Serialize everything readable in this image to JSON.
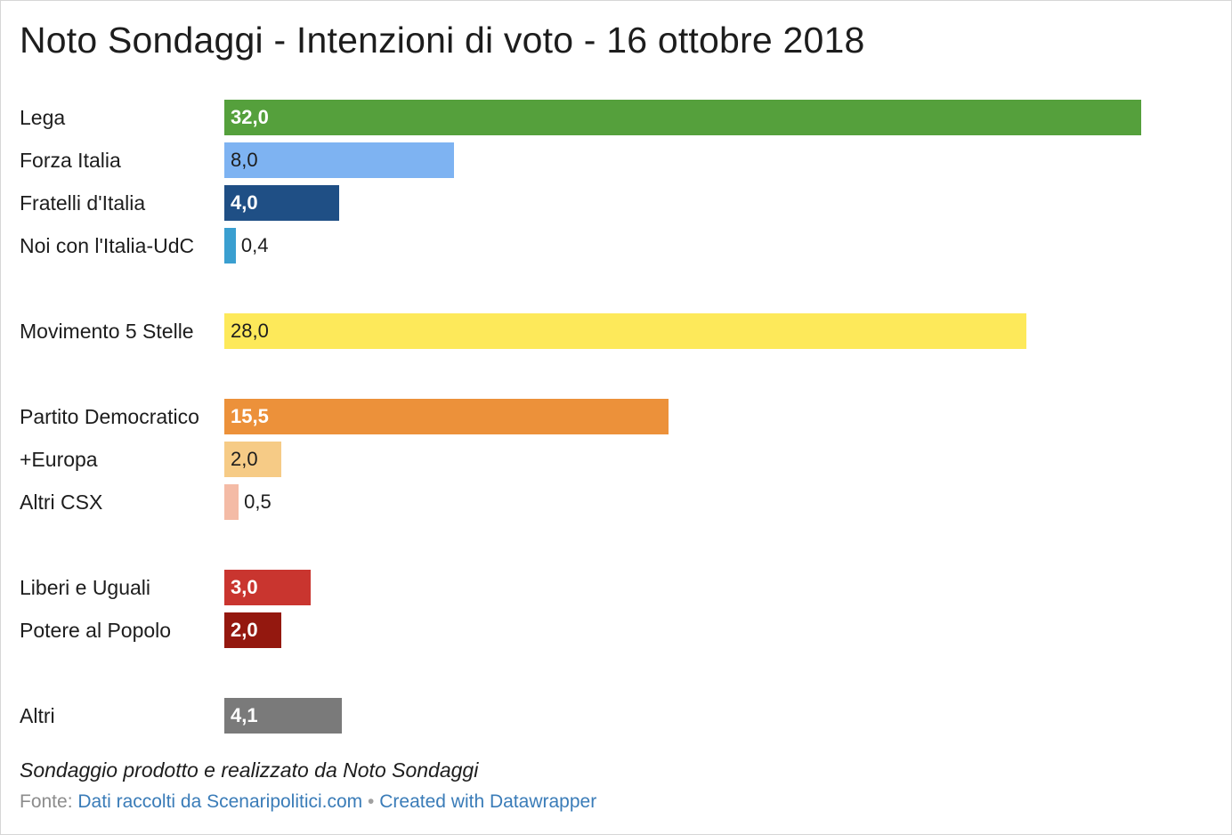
{
  "title": "Noto Sondaggi - Intenzioni di voto - 16 ottobre 2018",
  "notes": "Sondaggio prodotto e realizzato da Noto Sondaggi",
  "source": {
    "prefix": "Fonte:",
    "source_link": "Dati raccolti da Scenaripolitici.com",
    "separator": "•",
    "credit_link": "Created with Datawrapper"
  },
  "chart_data": {
    "type": "bar",
    "orientation": "horizontal",
    "title": "Noto Sondaggi - Intenzioni di voto - 16 ottobre 2018",
    "xlim": [
      0,
      32
    ],
    "grid": false,
    "legend": "none",
    "categories": [
      "Lega",
      "Forza Italia",
      "Fratelli d'Italia",
      "Noi con l'Italia-UdC",
      "Movimento 5 Stelle",
      "Partito Democratico",
      "+Europa",
      "Altri CSX",
      "Liberi e Uguali",
      "Potere al Popolo",
      "Altri"
    ],
    "values": [
      32.0,
      8.0,
      4.0,
      0.4,
      28.0,
      15.5,
      2.0,
      0.5,
      3.0,
      2.0,
      4.1
    ],
    "value_labels": [
      "32,0",
      "8,0",
      "4,0",
      "0,4",
      "28,0",
      "15,5",
      "2,0",
      "0,5",
      "3,0",
      "2,0",
      "4,1"
    ],
    "colors": [
      "#55a03c",
      "#7eb3f2",
      "#1f4f85",
      "#3a9fd0",
      "#fde95a",
      "#ec913a",
      "#f6cb86",
      "#f4bba6",
      "#c9352f",
      "#94180f",
      "#7a7a7a"
    ],
    "label_light": [
      true,
      false,
      true,
      false,
      false,
      true,
      false,
      false,
      true,
      true,
      true
    ],
    "groups": [
      [
        "Lega",
        "Forza Italia",
        "Fratelli d'Italia",
        "Noi con l'Italia-UdC"
      ],
      [
        "Movimento 5 Stelle"
      ],
      [
        "Partito Democratico",
        "+Europa",
        "Altri CSX"
      ],
      [
        "Liberi e Uguali",
        "Potere al Popolo"
      ],
      [
        "Altri"
      ]
    ]
  }
}
